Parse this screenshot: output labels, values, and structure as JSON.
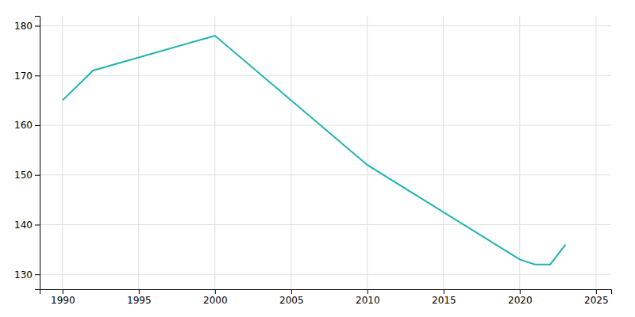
{
  "chart_data": {
    "type": "line",
    "x": [
      1990,
      1992,
      2000,
      2010,
      2020,
      2021,
      2022,
      2023
    ],
    "values": [
      165,
      171,
      178,
      152,
      133,
      132,
      132,
      136
    ],
    "color": "#20b2b2",
    "xlim": [
      1988.5,
      2026
    ],
    "ylim": [
      127,
      182
    ],
    "xticks": [
      1990,
      1995,
      2000,
      2005,
      2010,
      2015,
      2020,
      2025
    ],
    "yticks": [
      130,
      140,
      150,
      160,
      170,
      180
    ],
    "grid": true
  }
}
